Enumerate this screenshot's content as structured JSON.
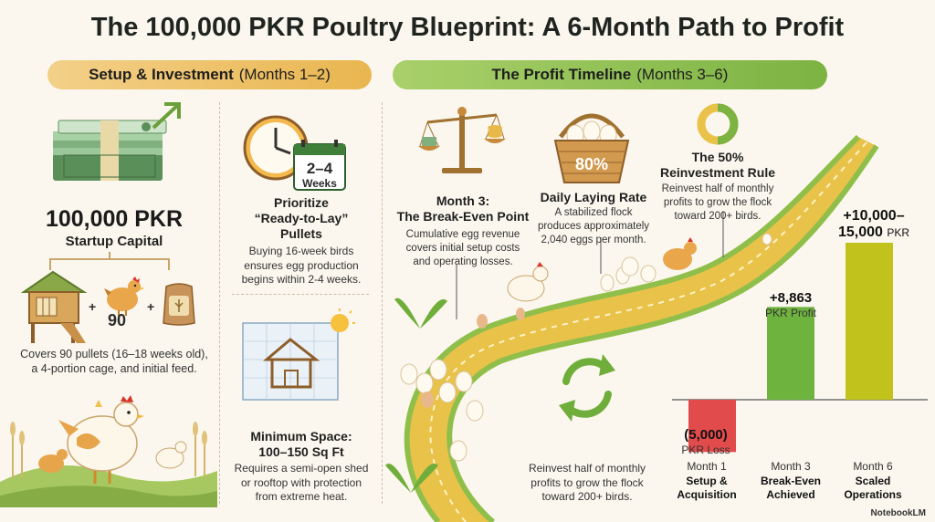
{
  "title": "The 100,000 PKR Poultry Blueprint: A 6-Month Path to Profit",
  "sections": {
    "setup": {
      "bold": "Setup & Investment",
      "rest": "(Months 1–2)"
    },
    "profit": {
      "bold": "The Profit Timeline",
      "rest": "(Months 3–6)"
    }
  },
  "capital": {
    "amount": "100,000 PKR",
    "label": "Startup Capital",
    "count": "90",
    "plus1": "+",
    "plus2": "+",
    "description_line1": "Covers 90 pullets (16–18 weeks old),",
    "description_line2": "a 4-portion cage, and initial feed."
  },
  "pullets": {
    "calendar_top": "2–4",
    "calendar_bottom": "Weeks",
    "heading_line1": "Prioritize",
    "heading_line2": "“Ready-to-Lay”",
    "heading_line3": "Pullets",
    "text_line1": "Buying 16-week birds",
    "text_line2": "ensures egg production",
    "text_line3": "begins within 2-4 weeks."
  },
  "space": {
    "heading_line1": "Minimum Space:",
    "heading_line2": "100–150 Sq Ft",
    "text_line1": "Requires a semi-open shed",
    "text_line2": "or rooftop with protection",
    "text_line3": "from extreme heat."
  },
  "breakeven": {
    "heading_line1": "Month 3:",
    "heading_line2": "The Break-Even Point",
    "text_line1": "Cumulative egg revenue",
    "text_line2": "covers initial setup costs",
    "text_line3": "and operating losses."
  },
  "laying": {
    "percent": "80%",
    "heading": "Daily Laying Rate",
    "text_line1": "A stabilized flock",
    "text_line2": "produces approximately",
    "text_line3": "2,040 eggs per month."
  },
  "reinvest": {
    "heading_line1": "The 50%",
    "heading_line2": "Reinvestment Rule",
    "text_line1": "Reinvest half of monthly",
    "text_line2": "profits to grow the flock",
    "text_line3": "toward 200+ birds.",
    "bottom_line1": "Reinvest half of monthly",
    "bottom_line2": "profits to grow the flock",
    "bottom_line3": "toward 200+ birds."
  },
  "chart_data": {
    "type": "bar",
    "categories": [
      "Month 1",
      "Month 3",
      "Month 6"
    ],
    "category_titles": [
      "Setup & Acquisition",
      "Break-Even Achieved",
      "Scaled Operations"
    ],
    "values": [
      -5000,
      8863,
      15000
    ],
    "value_labels": [
      {
        "main": "(5,000)",
        "unit": "PKR Loss"
      },
      {
        "main": "+8,863",
        "unit": "PKR Profit"
      },
      {
        "main": "+10,000–\n15,000",
        "unit": "PKR"
      }
    ],
    "colors": [
      "#e24b4b",
      "#6fb33f",
      "#c2c21d"
    ]
  },
  "chart_text": {
    "m1": "Month 1",
    "m1_title_1": "Setup &",
    "m1_title_2": "Acquisition",
    "m3": "Month 3",
    "m3_title_1": "Break-Even",
    "m3_title_2": "Achieved",
    "m6": "Month 6",
    "m6_title_1": "Scaled",
    "m6_title_2": "Operations",
    "loss_main": "(5,000)",
    "loss_unit": "PKR Loss",
    "profit_main": "+8,863",
    "profit_unit": "PKR Profit",
    "scaled_main_1": "+10,000–",
    "scaled_main_2": "15,000",
    "scaled_unit": "PKR"
  },
  "brand": "NotebookLM"
}
